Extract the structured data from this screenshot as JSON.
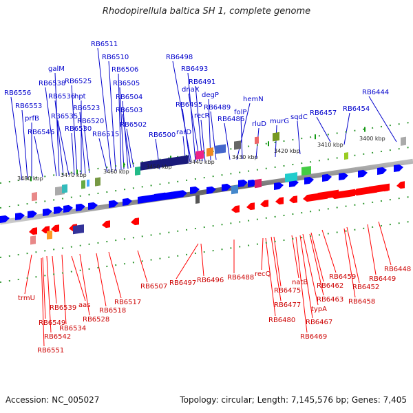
{
  "title": "Rhodopirellula baltica SH 1, complete genome",
  "footer": {
    "accession": "Accession: NC_005027",
    "summary": "Topology: circular; Length: 7,145,576 bp; Genes: 7,405"
  },
  "scale_labels": [
    "3480 kbp",
    "3470 kbp",
    "3460 kbp",
    "3450 kbp",
    "3440 kbp",
    "3430 kbp",
    "3420 kbp",
    "3410 kbp",
    "3400 kbp"
  ],
  "top_genes": [
    "RB6511",
    "RB6510",
    "RB6506",
    "RB6505",
    "RB6504",
    "RB6503",
    "RB6502",
    "RB6498",
    "RB6493",
    "RB6491",
    "dnaX",
    "degP",
    "RB6495",
    "recR",
    "RB6489",
    "hemN",
    "RB6486",
    "folP",
    "RB6556",
    "RB6553",
    "prfB",
    "RB6546",
    "galM",
    "RB6538",
    "RB6536",
    "RB6535",
    "RB6530",
    "RB6525",
    "hpt",
    "RB6523",
    "RB6520",
    "RB6515",
    "RB6500",
    "rarD",
    "rluD",
    "murG",
    "sqdC",
    "RB6457",
    "RB6454",
    "RB6444"
  ],
  "bottom_genes": [
    "trmU",
    "RB6549",
    "RB6542",
    "RB6551",
    "RB6539",
    "RB6534",
    "aas",
    "RB6528",
    "RB6518",
    "RB6517",
    "RB6507",
    "RB6497",
    "RB6496",
    "RB6488",
    "recQ",
    "RB6477",
    "RB6475",
    "RB6480",
    "natB",
    "typA",
    "RB6467",
    "RB6469",
    "RB6463",
    "RB6462",
    "RB6459",
    "RB6458",
    "RB6452",
    "RB6449",
    "RB6448"
  ],
  "colors": {
    "forward": "#0000ff",
    "reverse": "#ff0000",
    "top_label": "#0000cc",
    "bottom_label": "#cc0000",
    "backbone": "#777777",
    "tick": "#339933"
  }
}
